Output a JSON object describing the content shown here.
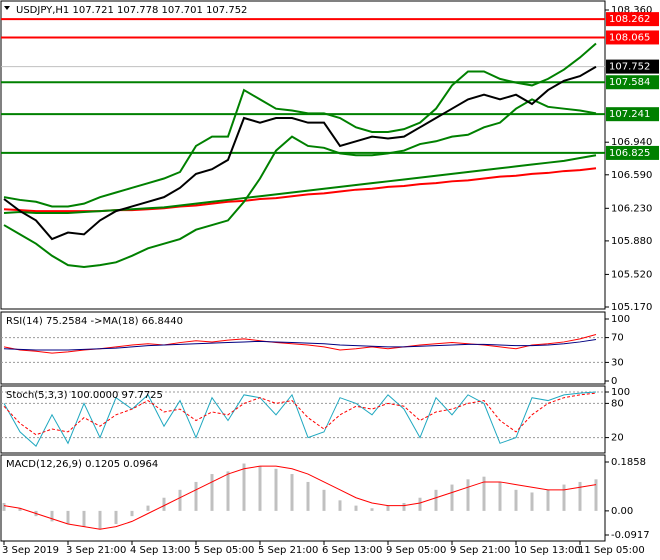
{
  "chart_data": [
    {
      "type": "line",
      "title": "USDJPY,H1  107.721 107.778 107.701 107.752",
      "ylim": [
        105.17,
        108.36
      ],
      "yticks": [
        {
          "value": 108.36,
          "label": "108.360"
        },
        {
          "value": 106.94,
          "label": "106.940"
        },
        {
          "value": 106.59,
          "label": "106.590"
        },
        {
          "value": 106.23,
          "label": "106.230"
        },
        {
          "value": 105.88,
          "label": "105.880"
        },
        {
          "value": 105.52,
          "label": "105.520"
        },
        {
          "value": 105.17,
          "label": "105.170"
        }
      ],
      "levels": [
        {
          "value": 108.262,
          "color": "#ff0000"
        },
        {
          "value": 108.065,
          "color": "#ff0000"
        },
        {
          "value": 107.584,
          "color": "#008000"
        },
        {
          "value": 107.241,
          "color": "#008000"
        },
        {
          "value": 106.825,
          "color": "#008000"
        }
      ],
      "current": 107.752,
      "series": [
        {
          "color": "#ff0000",
          "values": [
            106.22,
            106.21,
            106.2,
            106.2,
            106.2,
            106.2,
            106.2,
            106.21,
            106.21,
            106.22,
            106.23,
            106.25,
            106.26,
            106.28,
            106.3,
            106.31,
            106.33,
            106.34,
            106.36,
            106.38,
            106.39,
            106.41,
            106.43,
            106.44,
            106.46,
            106.47,
            106.49,
            106.5,
            106.52,
            106.53,
            106.55,
            106.57,
            106.58,
            106.6,
            106.61,
            106.63,
            106.64,
            106.66
          ]
        },
        {
          "color": "#008000",
          "values": [
            106.18,
            106.19,
            106.18,
            106.18,
            106.18,
            106.19,
            106.2,
            106.21,
            106.22,
            106.23,
            106.24,
            106.26,
            106.28,
            106.3,
            106.32,
            106.34,
            106.36,
            106.38,
            106.4,
            106.42,
            106.44,
            106.46,
            106.48,
            106.5,
            106.52,
            106.54,
            106.56,
            106.58,
            106.6,
            106.62,
            106.64,
            106.66,
            106.68,
            106.7,
            106.72,
            106.74,
            106.77,
            106.8
          ]
        },
        {
          "color": "#008000",
          "values": [
            106.35,
            106.32,
            106.3,
            106.25,
            106.25,
            106.28,
            106.35,
            106.4,
            106.45,
            106.5,
            106.55,
            106.62,
            106.9,
            107.0,
            107.0,
            107.5,
            107.4,
            107.3,
            107.28,
            107.25,
            107.25,
            107.2,
            107.1,
            107.05,
            107.05,
            107.08,
            107.15,
            107.3,
            107.55,
            107.7,
            107.7,
            107.62,
            107.58,
            107.55,
            107.62,
            107.72,
            107.85,
            108.0
          ]
        },
        {
          "color": "#008000",
          "values": [
            106.05,
            105.95,
            105.85,
            105.72,
            105.62,
            105.6,
            105.62,
            105.65,
            105.72,
            105.8,
            105.85,
            105.9,
            106.0,
            106.05,
            106.1,
            106.3,
            106.55,
            106.85,
            107.0,
            106.9,
            106.88,
            106.82,
            106.8,
            106.8,
            106.82,
            106.85,
            106.92,
            106.95,
            107.0,
            107.02,
            107.1,
            107.15,
            107.3,
            107.4,
            107.32,
            107.3,
            107.28,
            107.25
          ]
        },
        {
          "color": "#000000",
          "values": [
            106.33,
            106.2,
            106.1,
            105.9,
            105.97,
            105.95,
            106.1,
            106.2,
            106.25,
            106.3,
            106.35,
            106.45,
            106.6,
            106.65,
            106.75,
            107.2,
            107.15,
            107.2,
            107.2,
            107.15,
            107.15,
            106.9,
            106.95,
            107.0,
            106.98,
            107.0,
            107.1,
            107.2,
            107.3,
            107.4,
            107.45,
            107.4,
            107.45,
            107.35,
            107.5,
            107.6,
            107.65,
            107.75
          ]
        }
      ]
    },
    {
      "type": "line",
      "title": "RSI(14) 75.2584  ->MA(18) 66.8440",
      "ylim": [
        0,
        100
      ],
      "yticks": [
        100,
        70,
        30,
        0
      ],
      "series": [
        {
          "color": "#ff0000",
          "values": [
            55,
            50,
            48,
            45,
            47,
            50,
            52,
            55,
            58,
            60,
            58,
            62,
            65,
            63,
            66,
            68,
            65,
            62,
            60,
            58,
            55,
            50,
            52,
            55,
            52,
            55,
            58,
            60,
            62,
            60,
            58,
            55,
            52,
            58,
            60,
            63,
            68,
            75
          ]
        },
        {
          "color": "#000080",
          "values": [
            52,
            51,
            50,
            50,
            50,
            51,
            52,
            53,
            55,
            57,
            58,
            59,
            60,
            61,
            62,
            63,
            64,
            63,
            62,
            61,
            60,
            58,
            57,
            56,
            55,
            55,
            56,
            57,
            58,
            59,
            59,
            58,
            57,
            57,
            58,
            60,
            63,
            67
          ]
        }
      ]
    },
    {
      "type": "line",
      "title": "Stoch(5,3,3) 100.0000 97.7725",
      "ylim": [
        0,
        100
      ],
      "yticks": [
        100,
        80,
        20
      ],
      "series": [
        {
          "color": "#20a8c0",
          "values": [
            80,
            30,
            5,
            60,
            10,
            80,
            20,
            90,
            70,
            95,
            40,
            85,
            20,
            90,
            50,
            95,
            90,
            60,
            95,
            20,
            30,
            90,
            80,
            60,
            95,
            70,
            20,
            90,
            60,
            95,
            80,
            10,
            20,
            90,
            85,
            95,
            98,
            100
          ]
        },
        {
          "color": "#ff0000",
          "values": [
            75,
            45,
            25,
            35,
            30,
            55,
            40,
            60,
            70,
            85,
            65,
            70,
            50,
            65,
            60,
            80,
            90,
            80,
            85,
            55,
            35,
            60,
            75,
            70,
            80,
            75,
            50,
            65,
            70,
            80,
            85,
            50,
            30,
            60,
            80,
            90,
            95,
            98
          ]
        }
      ]
    },
    {
      "type": "macd",
      "title": "MACD(12,26,9) 0.1205 0.0964",
      "ylim": [
        -0.0917,
        0.1858
      ],
      "yticks": [
        0.1858,
        {
          "value": 0,
          "label": "0.00"
        },
        -0.0917
      ],
      "categories": [
        "3 Sep 2019",
        null,
        null,
        null,
        "3 Sep 21:00",
        null,
        null,
        null,
        "4 Sep 13:00",
        null,
        null,
        null,
        "5 Sep 05:00",
        null,
        null,
        null,
        "5 Sep 21:00",
        null,
        null,
        null,
        "6 Sep 13:00",
        null,
        null,
        null,
        "9 Sep 05:00",
        null,
        null,
        null,
        "9 Sep 21:00",
        null,
        null,
        null,
        "10 Sep 13:00",
        null,
        null,
        null,
        "11 Sep 05:00",
        null
      ],
      "series": [
        {
          "color": "#c0c0c0",
          "values": [
            0.03,
            0.01,
            -0.02,
            -0.04,
            -0.05,
            -0.06,
            -0.07,
            -0.05,
            -0.02,
            0.02,
            0.05,
            0.08,
            0.11,
            0.14,
            0.15,
            0.18,
            0.17,
            0.16,
            0.14,
            0.11,
            0.08,
            0.04,
            0.02,
            0.01,
            0.02,
            0.03,
            0.05,
            0.08,
            0.1,
            0.12,
            0.13,
            0.11,
            0.08,
            0.07,
            0.08,
            0.1,
            0.11,
            0.12
          ]
        },
        {
          "color": "#ff0000",
          "values": [
            0.02,
            0.01,
            -0.01,
            -0.03,
            -0.05,
            -0.06,
            -0.07,
            -0.06,
            -0.04,
            -0.01,
            0.02,
            0.05,
            0.08,
            0.11,
            0.14,
            0.16,
            0.17,
            0.17,
            0.16,
            0.14,
            0.11,
            0.08,
            0.05,
            0.03,
            0.02,
            0.02,
            0.03,
            0.05,
            0.07,
            0.09,
            0.11,
            0.11,
            0.1,
            0.09,
            0.08,
            0.08,
            0.09,
            0.1
          ]
        }
      ]
    }
  ]
}
